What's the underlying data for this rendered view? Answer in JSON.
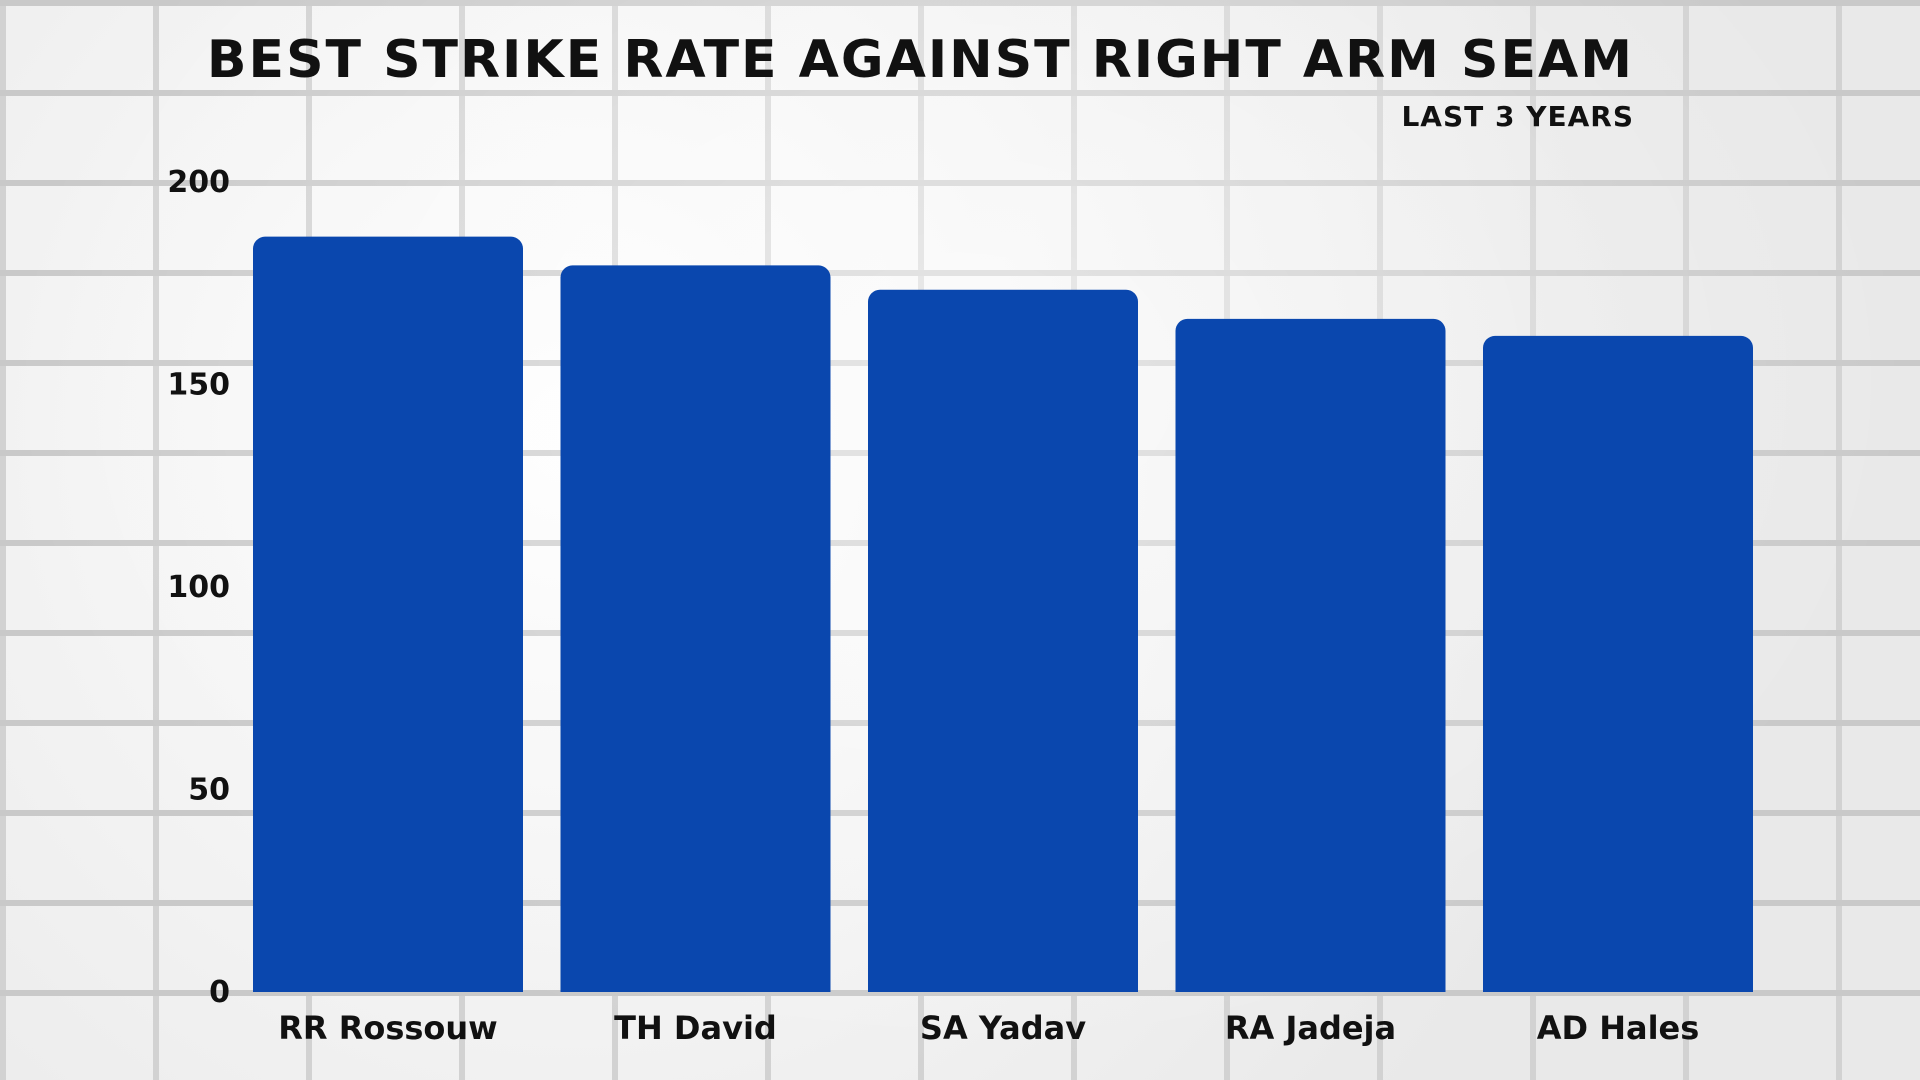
{
  "header": {
    "title": "BEST STRIKE RATE AGAINST RIGHT ARM SEAM",
    "subtitle": "LAST 3 YEARS"
  },
  "colors": {
    "bar": "#0a47ae",
    "text": "#111111"
  },
  "chart_data": {
    "type": "bar",
    "title": "BEST STRIKE RATE AGAINST RIGHT ARM SEAM",
    "subtitle": "LAST 3 YEARS",
    "xlabel": "",
    "ylabel": "",
    "categories": [
      "RR Rossouw",
      "TH David",
      "SA Yadav",
      "RA Jadeja",
      "AD Hales"
    ],
    "values": [
      186.5,
      179.4,
      173.4,
      166.2,
      162.0
    ],
    "yticks": [
      0,
      50,
      100,
      150,
      200
    ],
    "ylim": [
      0,
      200
    ],
    "grid": false,
    "legend": "none"
  }
}
